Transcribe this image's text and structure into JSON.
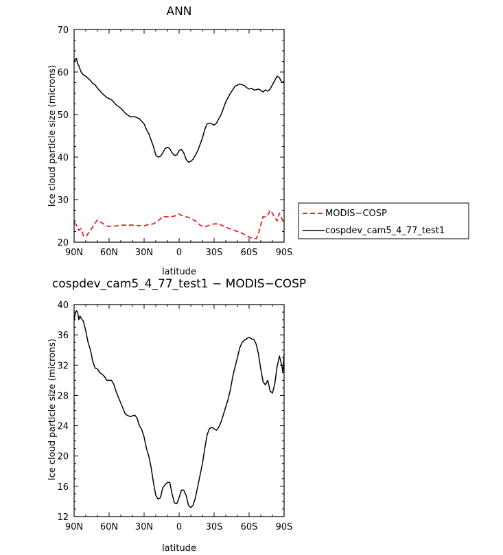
{
  "chart_data": [
    {
      "type": "line",
      "title": "ANN",
      "xlabel": "latitude",
      "ylabel": "Ice cloud particle size (microns)",
      "xlim": [
        90,
        -90
      ],
      "ylim": [
        20,
        70
      ],
      "xticks": [
        {
          "v": 90,
          "label": "90N"
        },
        {
          "v": 60,
          "label": "60N"
        },
        {
          "v": 30,
          "label": "30N"
        },
        {
          "v": 0,
          "label": "0"
        },
        {
          "v": -30,
          "label": "30S"
        },
        {
          "v": -60,
          "label": "60S"
        },
        {
          "v": -90,
          "label": "90S"
        }
      ],
      "yticks": [
        20,
        30,
        40,
        50,
        60,
        70
      ],
      "legend": {
        "placement": "outside-right"
      },
      "series": [
        {
          "name": "MODIS−COSP",
          "color": "#e8201e",
          "dash": true,
          "x": [
            90,
            88,
            86,
            84,
            82,
            80,
            78,
            76,
            74,
            72,
            70,
            66,
            62,
            58,
            54,
            50,
            45,
            40,
            35,
            30,
            26,
            22,
            18,
            14,
            10,
            6,
            2,
            0,
            -2,
            -6,
            -10,
            -14,
            -18,
            -22,
            -26,
            -30,
            -34,
            -38,
            -42,
            -46,
            -50,
            -54,
            -58,
            -62,
            -64,
            -66,
            -68,
            -70,
            -72,
            -74,
            -76,
            -78,
            -80,
            -82,
            -84,
            -86,
            -88,
            -90
          ],
          "values": [
            24.6,
            24.0,
            22.8,
            23.2,
            21.5,
            21.3,
            22.0,
            22.8,
            23.6,
            24.5,
            25.2,
            24.5,
            23.8,
            23.7,
            23.8,
            24.0,
            24.0,
            24.0,
            23.9,
            23.8,
            24.2,
            24.3,
            25.0,
            26.0,
            26.0,
            26.0,
            26.3,
            26.6,
            26.3,
            26.0,
            25.6,
            25.0,
            24.0,
            23.6,
            24.0,
            24.3,
            24.3,
            23.8,
            23.3,
            22.9,
            22.5,
            22.1,
            21.5,
            21.0,
            20.8,
            20.8,
            22.0,
            24.0,
            26.0,
            26.0,
            26.3,
            27.5,
            26.8,
            25.8,
            25.0,
            26.8,
            25.5,
            24.6
          ]
        },
        {
          "name": "cospdev_cam5_4_77_test1",
          "color": "#000000",
          "dash": false,
          "x": [
            90,
            89,
            88,
            87,
            86,
            84,
            82,
            80,
            78,
            76,
            74,
            72,
            70,
            66,
            62,
            58,
            54,
            50,
            46,
            42,
            38,
            34,
            30,
            28,
            26,
            24,
            22,
            20,
            18,
            16,
            14,
            12,
            10,
            8,
            6,
            4,
            2,
            0,
            -2,
            -4,
            -6,
            -8,
            -10,
            -12,
            -14,
            -16,
            -18,
            -20,
            -22,
            -24,
            -26,
            -28,
            -30,
            -32,
            -34,
            -36,
            -38,
            -40,
            -44,
            -48,
            -52,
            -54,
            -56,
            -58,
            -60,
            -62,
            -64,
            -66,
            -68,
            -70,
            -72,
            -74,
            -76,
            -78,
            -80,
            -82,
            -84,
            -86,
            -88,
            -90
          ],
          "values": [
            62.5,
            63.0,
            63.2,
            62.0,
            61.5,
            60.0,
            59.3,
            59.0,
            58.5,
            58.0,
            57.3,
            57.0,
            56.2,
            55.0,
            54.0,
            53.5,
            52.3,
            51.5,
            50.3,
            49.5,
            49.5,
            49.0,
            47.8,
            46.5,
            45.5,
            44.0,
            42.5,
            40.5,
            40.0,
            40.2,
            41.0,
            42.0,
            42.3,
            42.0,
            41.0,
            40.4,
            40.5,
            41.5,
            41.8,
            41.0,
            39.5,
            38.8,
            39.0,
            39.5,
            40.5,
            41.5,
            43.0,
            44.5,
            46.5,
            47.8,
            48.0,
            47.8,
            47.5,
            48.0,
            49.0,
            50.0,
            51.5,
            53.0,
            55.0,
            56.7,
            57.2,
            57.0,
            56.8,
            56.3,
            56.0,
            56.2,
            55.8,
            55.8,
            56.0,
            55.7,
            55.3,
            55.8,
            55.5,
            56.0,
            57.0,
            58.0,
            59.0,
            58.7,
            57.5,
            57.8
          ]
        }
      ]
    },
    {
      "type": "line",
      "title": "cospdev_cam5_4_77_test1 − MODIS−COSP",
      "xlabel": "latitude",
      "ylabel": "Ice cloud particle size (microns)",
      "xlim": [
        90,
        -90
      ],
      "ylim": [
        12,
        40
      ],
      "xticks": [
        {
          "v": 90,
          "label": "90N"
        },
        {
          "v": 60,
          "label": "60N"
        },
        {
          "v": 30,
          "label": "30N"
        },
        {
          "v": 0,
          "label": "0"
        },
        {
          "v": -30,
          "label": "30S"
        },
        {
          "v": -60,
          "label": "60S"
        },
        {
          "v": -90,
          "label": "90S"
        }
      ],
      "yticks": [
        12,
        16,
        20,
        24,
        28,
        32,
        36,
        40
      ],
      "series": [
        {
          "color": "#000000",
          "dash": false,
          "x": [
            90,
            89,
            88,
            87,
            86,
            85,
            84,
            82,
            80,
            78,
            76,
            74,
            72,
            70,
            68,
            66,
            64,
            62,
            58,
            56,
            54,
            50,
            46,
            42,
            38,
            36,
            34,
            32,
            30,
            28,
            26,
            24,
            22,
            20,
            18,
            16,
            14,
            12,
            10,
            8,
            6,
            4,
            2,
            0,
            -2,
            -4,
            -6,
            -8,
            -10,
            -12,
            -14,
            -16,
            -18,
            -20,
            -22,
            -24,
            -26,
            -28,
            -30,
            -32,
            -34,
            -36,
            -38,
            -40,
            -42,
            -44,
            -46,
            -48,
            -50,
            -52,
            -54,
            -56,
            -58,
            -60,
            -62,
            -64,
            -66,
            -68,
            -70,
            -72,
            -74,
            -76,
            -78,
            -80,
            -82,
            -84,
            -86,
            -88,
            -89,
            -90
          ],
          "values": [
            38.0,
            38.8,
            39.2,
            39.0,
            38.0,
            38.5,
            38.2,
            37.8,
            36.5,
            35.0,
            34.0,
            32.5,
            31.6,
            31.5,
            31.0,
            30.8,
            30.5,
            30.0,
            30.0,
            29.5,
            28.5,
            27.0,
            25.5,
            25.2,
            25.4,
            25.0,
            24.0,
            23.5,
            22.5,
            21.0,
            20.0,
            18.5,
            16.5,
            14.8,
            14.3,
            14.5,
            15.8,
            16.2,
            16.5,
            16.5,
            15.0,
            13.8,
            13.7,
            14.5,
            15.5,
            15.5,
            14.8,
            13.5,
            13.2,
            13.5,
            14.5,
            16.0,
            17.5,
            19.0,
            21.0,
            22.8,
            23.6,
            23.8,
            23.6,
            23.4,
            23.8,
            24.5,
            25.5,
            26.5,
            27.5,
            28.8,
            30.5,
            31.8,
            33.0,
            34.3,
            35.0,
            35.3,
            35.5,
            35.7,
            35.5,
            35.4,
            34.8,
            33.5,
            31.5,
            29.8,
            29.4,
            30.0,
            28.6,
            28.3,
            29.5,
            31.8,
            33.2,
            32.0,
            31.0,
            33.5
          ]
        }
      ]
    }
  ]
}
